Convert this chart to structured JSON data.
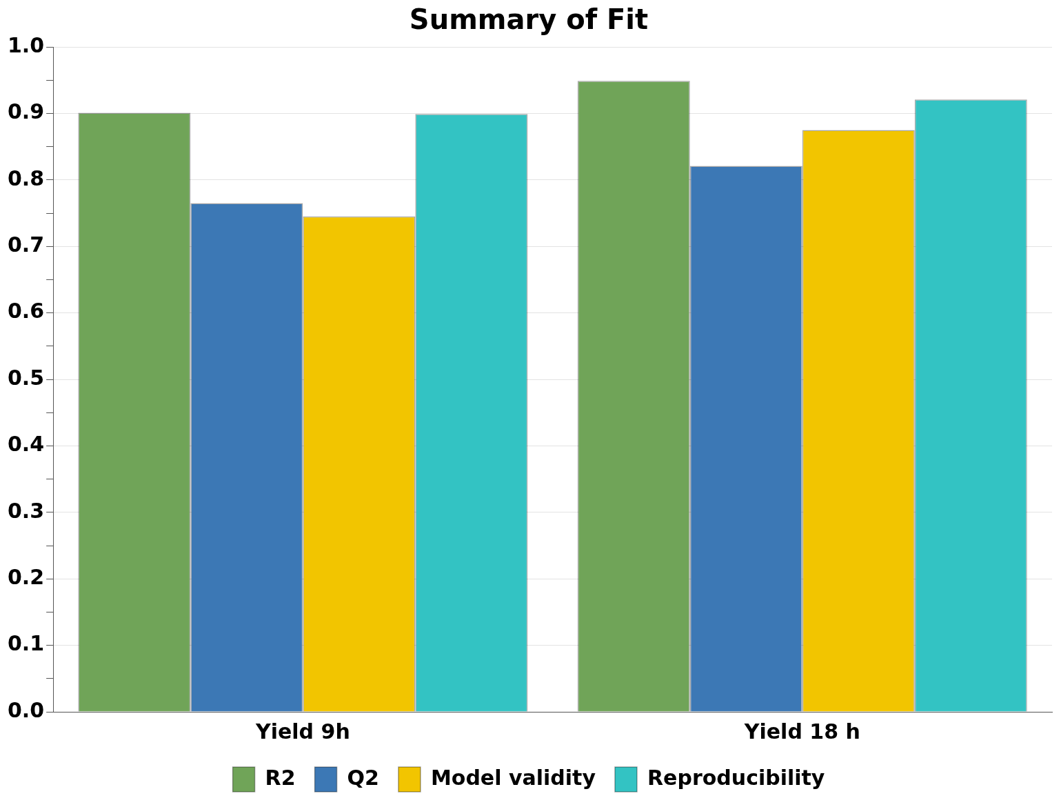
{
  "chart_data": {
    "type": "bar",
    "title": "Summary of Fit",
    "categories": [
      "Yield 9h",
      "Yield 18 h"
    ],
    "series": [
      {
        "name": "R2",
        "color": "#70a458",
        "values": [
          0.901,
          0.949
        ]
      },
      {
        "name": "Q2",
        "color": "#3c78b5",
        "values": [
          0.765,
          0.821
        ]
      },
      {
        "name": "Model validity",
        "color": "#f2c500",
        "values": [
          0.745,
          0.875
        ]
      },
      {
        "name": "Reproducibility",
        "color": "#33c3c3",
        "values": [
          0.899,
          0.921
        ]
      }
    ],
    "ylim": [
      0,
      1
    ],
    "yticks": [
      {
        "value": 0,
        "label": "0.0"
      },
      {
        "value": 0.05,
        "label": null
      },
      0.1,
      {
        "value": 0.15,
        "label": null
      },
      0.2,
      {
        "value": 0.25,
        "label": null
      },
      0.3,
      {
        "value": 0.35,
        "label": null
      },
      0.4,
      {
        "value": 0.45,
        "label": null
      },
      0.5,
      {
        "value": 0.55,
        "label": null
      },
      0.6,
      {
        "value": 0.65,
        "label": null
      },
      0.7,
      {
        "value": 0.75,
        "label": null
      },
      0.8,
      {
        "value": 0.85,
        "label": null
      },
      0.9,
      {
        "value": 0.95,
        "label": null
      },
      {
        "value": 1,
        "label": "1.0"
      }
    ],
    "grid": "y",
    "legend": "bottom"
  }
}
